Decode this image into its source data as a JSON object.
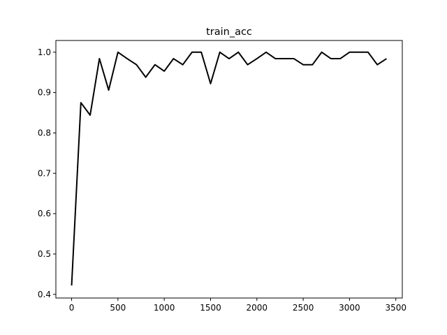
{
  "chart_data": {
    "type": "line",
    "title": "train_acc",
    "xlabel": "",
    "ylabel": "",
    "xlim": [
      -170,
      3570
    ],
    "ylim": [
      0.391,
      1.029
    ],
    "grid": false,
    "xticks": [
      0,
      500,
      1000,
      1500,
      2000,
      2500,
      3000,
      3500
    ],
    "yticks": [
      0.4,
      0.5,
      0.6,
      0.7,
      0.8,
      0.9,
      1.0
    ],
    "xtick_labels": [
      "0",
      "500",
      "1000",
      "1500",
      "2000",
      "2500",
      "3000",
      "3500"
    ],
    "ytick_labels": [
      "0.4",
      "0.5",
      "0.6",
      "0.7",
      "0.8",
      "0.9",
      "1.0"
    ],
    "series": [
      {
        "color": "#000000",
        "x": [
          0,
          100,
          200,
          300,
          400,
          500,
          600,
          700,
          800,
          900,
          1000,
          1100,
          1200,
          1300,
          1400,
          1500,
          1600,
          1700,
          1800,
          1900,
          2000,
          2100,
          2200,
          2300,
          2400,
          2500,
          2600,
          2700,
          2800,
          2900,
          3000,
          3100,
          3200,
          3300,
          3400
        ],
        "y": [
          0.422,
          0.875,
          0.844,
          0.984,
          0.906,
          1.0,
          0.984,
          0.969,
          0.938,
          0.969,
          0.953,
          0.984,
          0.969,
          1.0,
          1.0,
          0.922,
          1.0,
          0.984,
          1.0,
          0.969,
          0.984,
          1.0,
          0.984,
          0.984,
          0.984,
          0.969,
          0.969,
          1.0,
          0.984,
          0.984,
          1.0,
          1.0,
          1.0,
          0.969,
          0.984
        ]
      }
    ]
  }
}
